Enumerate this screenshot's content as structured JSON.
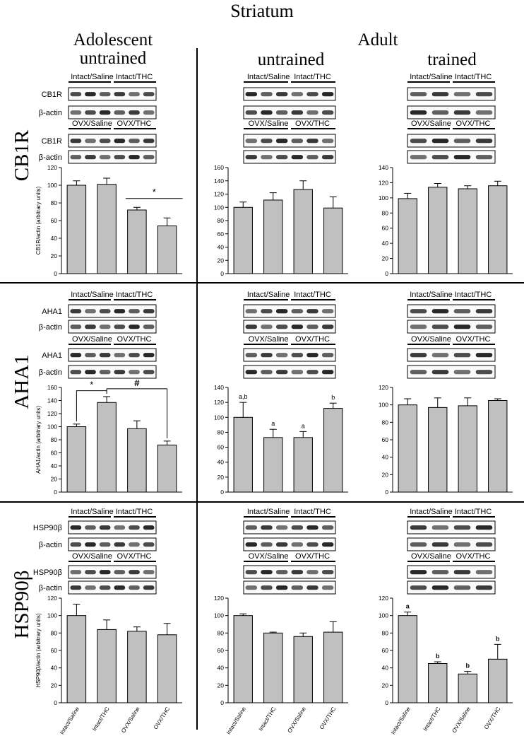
{
  "figure": {
    "title": "Striatum",
    "groups": {
      "adolescent": "Adolescent",
      "adolescent_sub": "untrained",
      "adult": "Adult",
      "adult_untrained": "untrained",
      "adult_trained": "trained"
    },
    "rows": [
      "CB1R",
      "AHA1",
      "HSP90β"
    ],
    "blot_labels": {
      "intact_saline": "Intact/Saline",
      "intact_thc": "Intact/THC",
      "ovx_saline": "OVX/Saline",
      "ovx_thc": "OVX/THC",
      "actin": "β-actin",
      "cb1r": "CB1R",
      "aha1": "AHA1",
      "hsp90": "HSP90β"
    }
  },
  "chart_data": [
    {
      "id": "cb1r-adolescent",
      "type": "bar",
      "categories": [
        "Intact/Saline",
        "Intact/THC",
        "OVX/Saline",
        "OVX/THC"
      ],
      "values": [
        100,
        101,
        72,
        54
      ],
      "errors": [
        5,
        7,
        3,
        9
      ],
      "ylabel": "CB1R/actin (arbitrary units)",
      "ylim": [
        0,
        120
      ],
      "yticks": [
        0,
        20,
        40,
        60,
        80,
        100,
        120
      ],
      "annotations": [
        {
          "type": "bracket",
          "from": 2,
          "to": 3,
          "label": "*"
        }
      ]
    },
    {
      "id": "cb1r-adult-untrained",
      "type": "bar",
      "categories": [
        "Intact/Saline",
        "Intact/THC",
        "OVX/Saline",
        "OVX/THC"
      ],
      "values": [
        100,
        111,
        127,
        99
      ],
      "errors": [
        8,
        11,
        13,
        17
      ],
      "ylabel": "",
      "ylim": [
        0,
        160
      ],
      "yticks": [
        0,
        20,
        40,
        60,
        80,
        100,
        120,
        140,
        160
      ],
      "annotations": []
    },
    {
      "id": "cb1r-adult-trained",
      "type": "bar",
      "categories": [
        "Intact/Saline",
        "Intact/THC",
        "OVX/Saline",
        "OVX/THC"
      ],
      "values": [
        99,
        114,
        112,
        116
      ],
      "errors": [
        7,
        5,
        4,
        6
      ],
      "ylabel": "",
      "ylim": [
        0,
        140
      ],
      "yticks": [
        0,
        20,
        40,
        60,
        80,
        100,
        120,
        140
      ],
      "annotations": []
    },
    {
      "id": "aha1-adolescent",
      "type": "bar",
      "categories": [
        "Intact/Saline",
        "Intact/THC",
        "OVX/Saline",
        "OVX/THC"
      ],
      "values": [
        100,
        137,
        97,
        72
      ],
      "errors": [
        4,
        9,
        12,
        6
      ],
      "ylabel": "AHA1/actin (arbitrary units)",
      "ylim": [
        0,
        160
      ],
      "yticks": [
        0,
        20,
        40,
        60,
        80,
        100,
        120,
        140,
        160
      ],
      "annotations": [
        {
          "type": "bracket",
          "from": 0,
          "to": 1,
          "label": "*"
        },
        {
          "type": "bracket",
          "from": 1,
          "to": 3,
          "label": "#"
        }
      ]
    },
    {
      "id": "aha1-adult-untrained",
      "type": "bar",
      "categories": [
        "Intact/Saline",
        "Intact/THC",
        "OVX/Saline",
        "OVX/THC"
      ],
      "values": [
        100,
        73,
        73,
        112
      ],
      "errors": [
        20,
        11,
        8,
        7
      ],
      "ylabel": "",
      "ylim": [
        0,
        140
      ],
      "yticks": [
        0,
        20,
        40,
        60,
        80,
        100,
        120,
        140
      ],
      "annotations": [
        {
          "type": "letters",
          "labels": [
            "a,b",
            "a",
            "a",
            "b"
          ]
        }
      ]
    },
    {
      "id": "aha1-adult-trained",
      "type": "bar",
      "categories": [
        "Intact/Saline",
        "Intact/THC",
        "OVX/Saline",
        "OVX/THC"
      ],
      "values": [
        100,
        97,
        99,
        105
      ],
      "errors": [
        7,
        11,
        9,
        2
      ],
      "ylabel": "",
      "ylim": [
        0,
        120
      ],
      "yticks": [
        0,
        20,
        40,
        60,
        80,
        100,
        120
      ],
      "annotations": []
    },
    {
      "id": "hsp90-adolescent",
      "type": "bar",
      "categories": [
        "Intact/Saline",
        "Intact/THC",
        "OVX/Saline",
        "OVX/THC"
      ],
      "values": [
        100,
        84,
        82,
        78
      ],
      "errors": [
        13,
        11,
        5,
        13
      ],
      "ylabel": "HSP90β/actin (arbitrary units)",
      "ylim": [
        0,
        120
      ],
      "yticks": [
        0,
        20,
        40,
        60,
        80,
        100,
        120
      ],
      "annotations": []
    },
    {
      "id": "hsp90-adult-untrained",
      "type": "bar",
      "categories": [
        "Intact/Saline",
        "Intact/THC",
        "OVX/Saline",
        "OVX/THC"
      ],
      "values": [
        100,
        80,
        76,
        81
      ],
      "errors": [
        2,
        1,
        4,
        12
      ],
      "ylabel": "",
      "ylim": [
        0,
        120
      ],
      "yticks": [
        0,
        20,
        40,
        60,
        80,
        100,
        120
      ],
      "annotations": []
    },
    {
      "id": "hsp90-adult-trained",
      "type": "bar",
      "categories": [
        "Intact/Saline",
        "Intact/THC",
        "OVX/Saline",
        "OVX/THC"
      ],
      "values": [
        100,
        45,
        33,
        50
      ],
      "errors": [
        4,
        2,
        3,
        17
      ],
      "ylabel": "",
      "ylim": [
        0,
        120
      ],
      "yticks": [
        0,
        20,
        40,
        60,
        80,
        100,
        120
      ],
      "annotations": [
        {
          "type": "letters",
          "labels": [
            "a",
            "b",
            "b",
            "b"
          ]
        }
      ]
    }
  ]
}
